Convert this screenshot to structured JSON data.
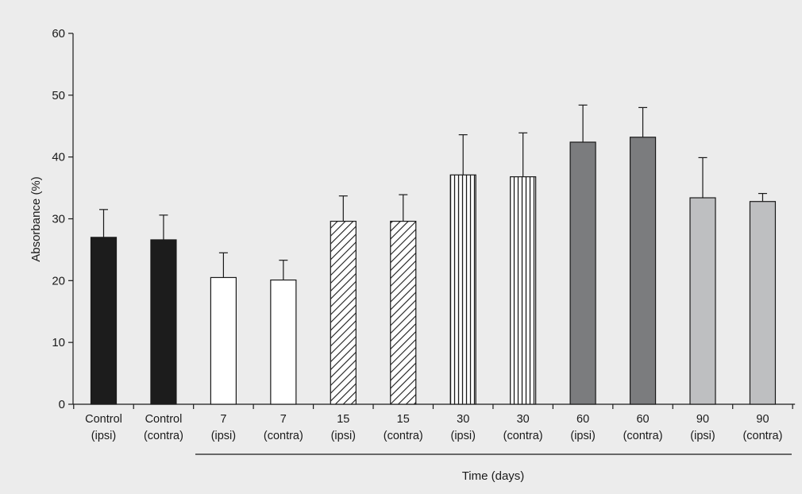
{
  "chart_data": {
    "type": "bar",
    "ylabel": "Absorbance (%)",
    "xlabel": "Time (days)",
    "ylim": [
      0,
      60
    ],
    "yticks": [
      0,
      10,
      20,
      30,
      40,
      50,
      60
    ],
    "grid": false,
    "categories": [
      {
        "line1": "Control",
        "line2": "(ipsi)"
      },
      {
        "line1": "Control",
        "line2": "(contra)"
      },
      {
        "line1": "7",
        "line2": "(ipsi)"
      },
      {
        "line1": "7",
        "line2": "(contra)"
      },
      {
        "line1": "15",
        "line2": "(ipsi)"
      },
      {
        "line1": "15",
        "line2": "(contra)"
      },
      {
        "line1": "30",
        "line2": "(ipsi)"
      },
      {
        "line1": "30",
        "line2": "(contra)"
      },
      {
        "line1": "60",
        "line2": "(ipsi)"
      },
      {
        "line1": "60",
        "line2": "(contra)"
      },
      {
        "line1": "90",
        "line2": "(ipsi)"
      },
      {
        "line1": "90",
        "line2": "(contra)"
      }
    ],
    "values": [
      27.0,
      26.6,
      20.5,
      20.1,
      29.6,
      29.6,
      37.1,
      36.8,
      42.4,
      43.2,
      33.4,
      32.8
    ],
    "errors": [
      4.5,
      4.0,
      4.0,
      3.2,
      4.1,
      4.3,
      6.5,
      7.1,
      6.0,
      4.8,
      6.5,
      1.3
    ],
    "fills": [
      "solid-black",
      "solid-black",
      "white",
      "white",
      "diagonal-hatch",
      "diagonal-hatch",
      "vertical-hatch",
      "vertical-hatch",
      "dark-gray",
      "dark-gray",
      "light-gray",
      "light-gray"
    ],
    "colors": {
      "solid-black": "#1c1c1c",
      "white": "#ffffff",
      "dark-gray": "#7b7c7e",
      "light-gray": "#bebfc1",
      "stroke": "#1a1a1a",
      "background": "#ececec"
    }
  }
}
